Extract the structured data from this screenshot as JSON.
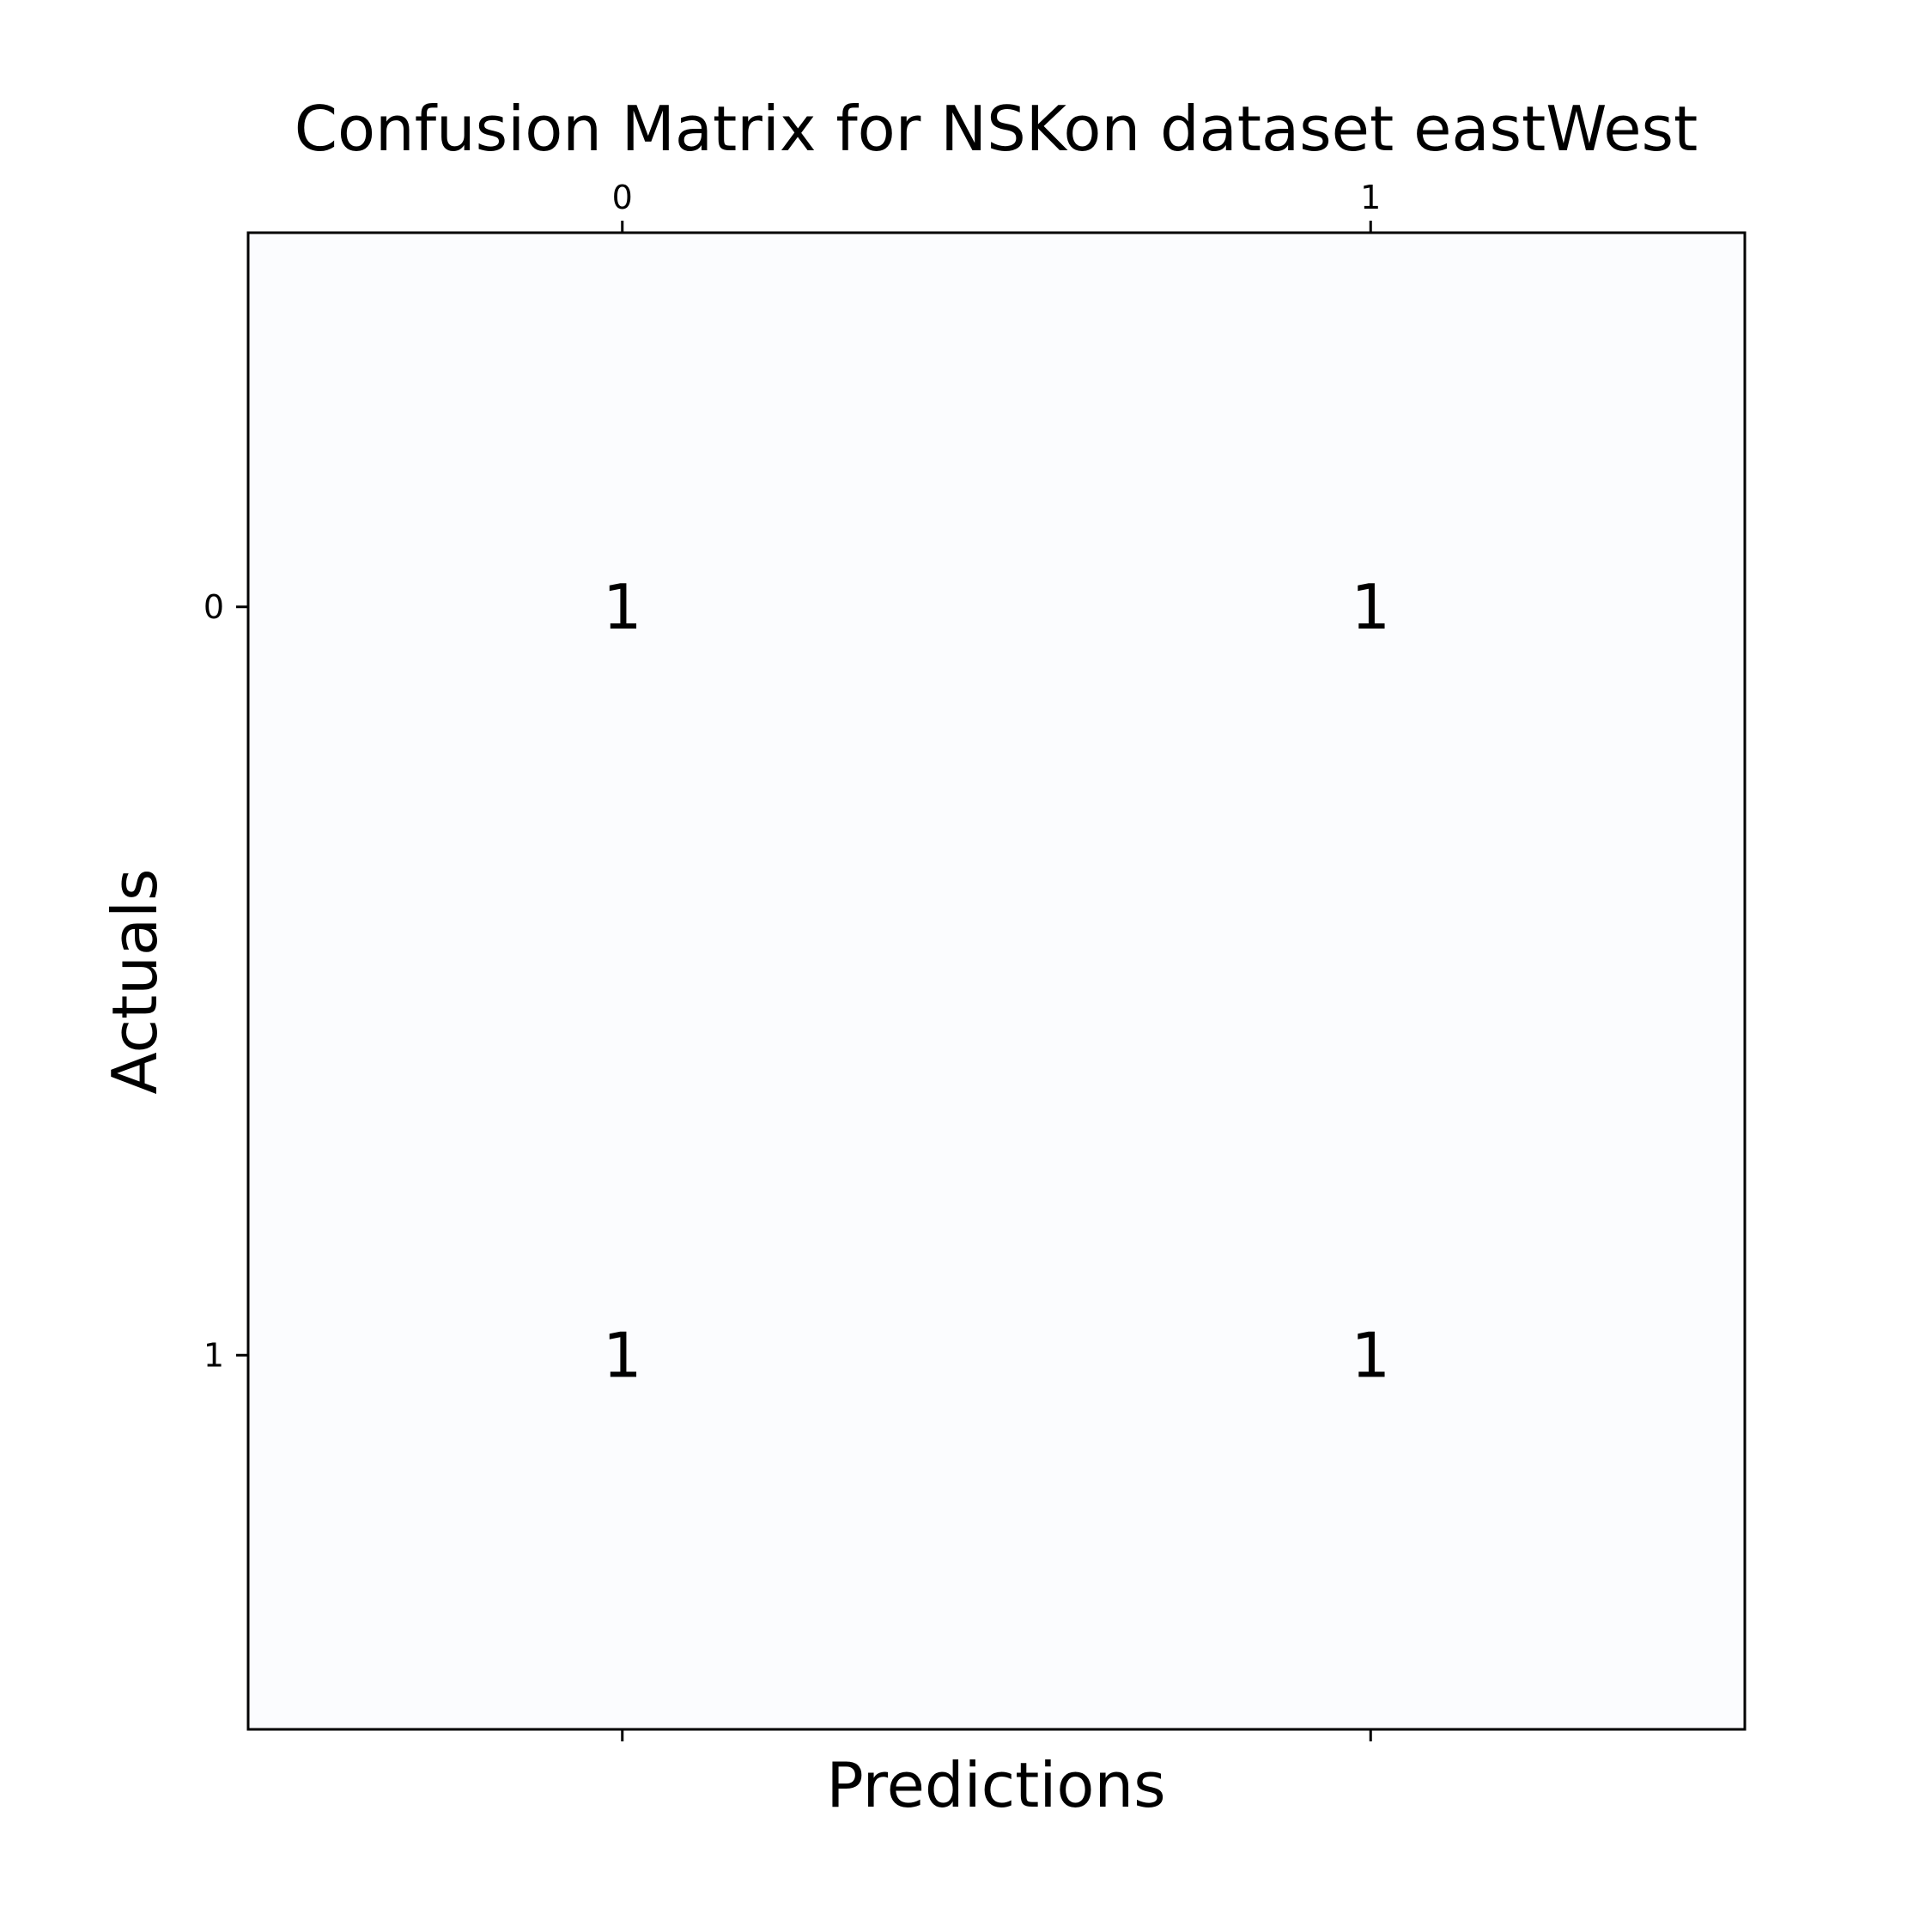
{
  "chart_data": {
    "type": "heatmap",
    "title": "Confusion Matrix for NSKon dataset eastWest",
    "xlabel": "Predictions",
    "ylabel": "Actuals",
    "x_categories": [
      "0",
      "1"
    ],
    "y_categories": [
      "0",
      "1"
    ],
    "values": [
      [
        1,
        1
      ],
      [
        1,
        1
      ]
    ],
    "x_tick_position": "top",
    "grid": false,
    "cell_color": "#fbfcfe"
  }
}
